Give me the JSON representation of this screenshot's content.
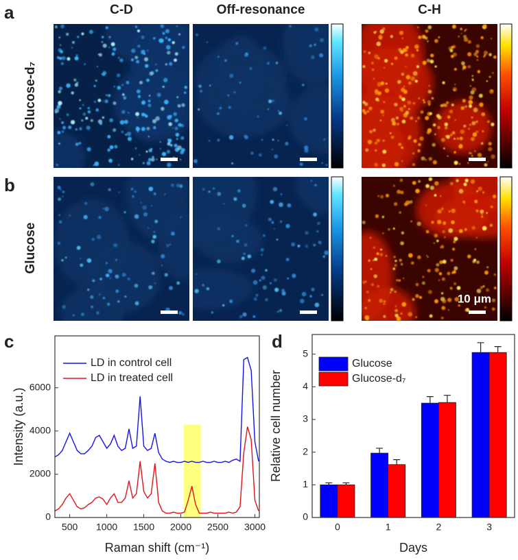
{
  "panel_labels": [
    "a",
    "b",
    "c",
    "d"
  ],
  "column_titles": [
    "C-D",
    "Off-resonance",
    "C-H"
  ],
  "row_labels": [
    "Glucose-d₇",
    "Glucose"
  ],
  "scale_bar_label": "10 μm",
  "chart_data": [
    {
      "type": "line",
      "xlabel": "Raman shift (cm⁻¹)",
      "ylabel": "Intensity (a.u.)",
      "x": [
        300,
        350,
        400,
        450,
        500,
        550,
        600,
        650,
        700,
        750,
        800,
        850,
        900,
        950,
        1000,
        1050,
        1100,
        1150,
        1200,
        1250,
        1300,
        1350,
        1400,
        1450,
        1500,
        1550,
        1600,
        1650,
        1700,
        1750,
        1800,
        1850,
        1900,
        1950,
        2000,
        2050,
        2100,
        2150,
        2200,
        2250,
        2300,
        2350,
        2400,
        2450,
        2500,
        2550,
        2600,
        2650,
        2700,
        2750,
        2800,
        2850,
        2900,
        2950,
        3000,
        3050
      ],
      "series": [
        {
          "name": "LD in control cell",
          "color": "#1414e6",
          "values": [
            2800,
            2900,
            3100,
            3500,
            3900,
            3500,
            3100,
            2950,
            2950,
            3100,
            3300,
            3700,
            3800,
            3500,
            3200,
            3400,
            3800,
            3300,
            3100,
            3200,
            4100,
            3200,
            3300,
            5600,
            3300,
            3100,
            3200,
            3900,
            3000,
            2700,
            2600,
            2550,
            2600,
            2550,
            2550,
            2600,
            2550,
            2600,
            2550,
            2550,
            2600,
            2550,
            2550,
            2600,
            2550,
            2550,
            2600,
            2550,
            2650,
            2700,
            2600,
            7300,
            7400,
            6800,
            3500,
            2600
          ]
        },
        {
          "name": "LD in treated cell",
          "color": "#e01414",
          "values": [
            300,
            400,
            600,
            900,
            1100,
            800,
            500,
            400,
            450,
            600,
            700,
            900,
            950,
            850,
            600,
            900,
            1100,
            700,
            700,
            900,
            1700,
            900,
            1100,
            2600,
            1200,
            900,
            1100,
            2500,
            700,
            300,
            200,
            200,
            250,
            200,
            200,
            250,
            800,
            1450,
            600,
            200,
            200,
            200,
            250,
            200,
            200,
            200,
            200,
            250,
            200,
            250,
            500,
            3000,
            4200,
            3600,
            800,
            300
          ]
        }
      ],
      "xlim": [
        300,
        3060
      ],
      "ylim": [
        0,
        8400
      ],
      "xticks": [
        500,
        1000,
        1500,
        2000,
        2500,
        3000
      ],
      "yticks": [
        0,
        2000,
        4000,
        6000
      ],
      "highlight_x": [
        2040,
        2270
      ],
      "highlight_color": "#ffff80"
    },
    {
      "type": "bar",
      "xlabel": "Days",
      "ylabel": "Relative cell number",
      "categories": [
        "0",
        "1",
        "2",
        "3"
      ],
      "series": [
        {
          "name": "Glucose",
          "color": "#0000ff",
          "values": [
            1.0,
            1.97,
            3.5,
            5.05
          ],
          "errors": [
            0.06,
            0.15,
            0.2,
            0.3
          ]
        },
        {
          "name": "Glucose-d₇",
          "color": "#ff0000",
          "values": [
            1.0,
            1.62,
            3.52,
            5.05
          ],
          "errors": [
            0.06,
            0.15,
            0.22,
            0.18
          ]
        }
      ],
      "ylim": [
        0,
        5.6
      ],
      "yticks": [
        0,
        1,
        2,
        3,
        4,
        5
      ]
    }
  ]
}
